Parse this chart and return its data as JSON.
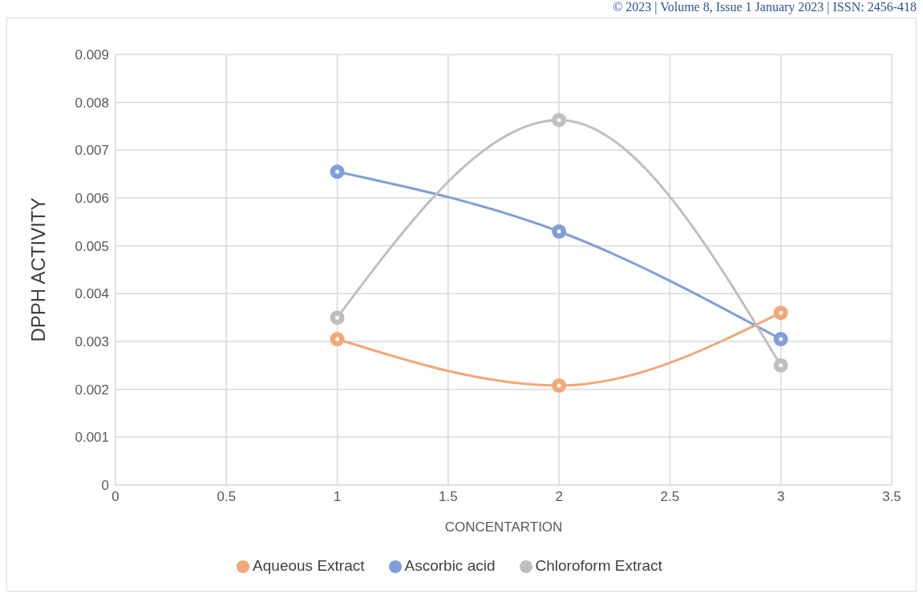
{
  "chart_data": {
    "type": "line",
    "xlabel": "CONCENTARTION",
    "ylabel": "DPPH ACTIVITY",
    "annotations": [
      "© 2023 | Volume 8, Issue 1 January 2023 | ISSN: 2456-418"
    ],
    "x": [
      1,
      2,
      3
    ],
    "series": [
      {
        "name": "Ascorbic acid",
        "color": "#7f9fd9",
        "values": [
          0.00655,
          0.0053,
          0.00305
        ]
      },
      {
        "name": "Aqueous Extract",
        "color": "#f2a878",
        "values": [
          0.00305,
          0.00208,
          0.0036
        ]
      },
      {
        "name": "Chloroform Extract",
        "color": "#bfbfbf",
        "values": [
          0.0035,
          0.00763,
          0.0025
        ]
      }
    ],
    "xlim": [
      0,
      3.5
    ],
    "xticks": [
      0,
      0.5,
      1,
      1.5,
      2,
      2.5,
      3,
      3.5
    ],
    "ylim": [
      0,
      0.009
    ],
    "yticks": [
      0,
      0.001,
      0.002,
      0.003,
      0.004,
      0.005,
      0.006,
      0.007,
      0.008,
      0.009
    ],
    "grid": true,
    "legend": "bottom",
    "marker": "circle",
    "line_style": "solid"
  }
}
